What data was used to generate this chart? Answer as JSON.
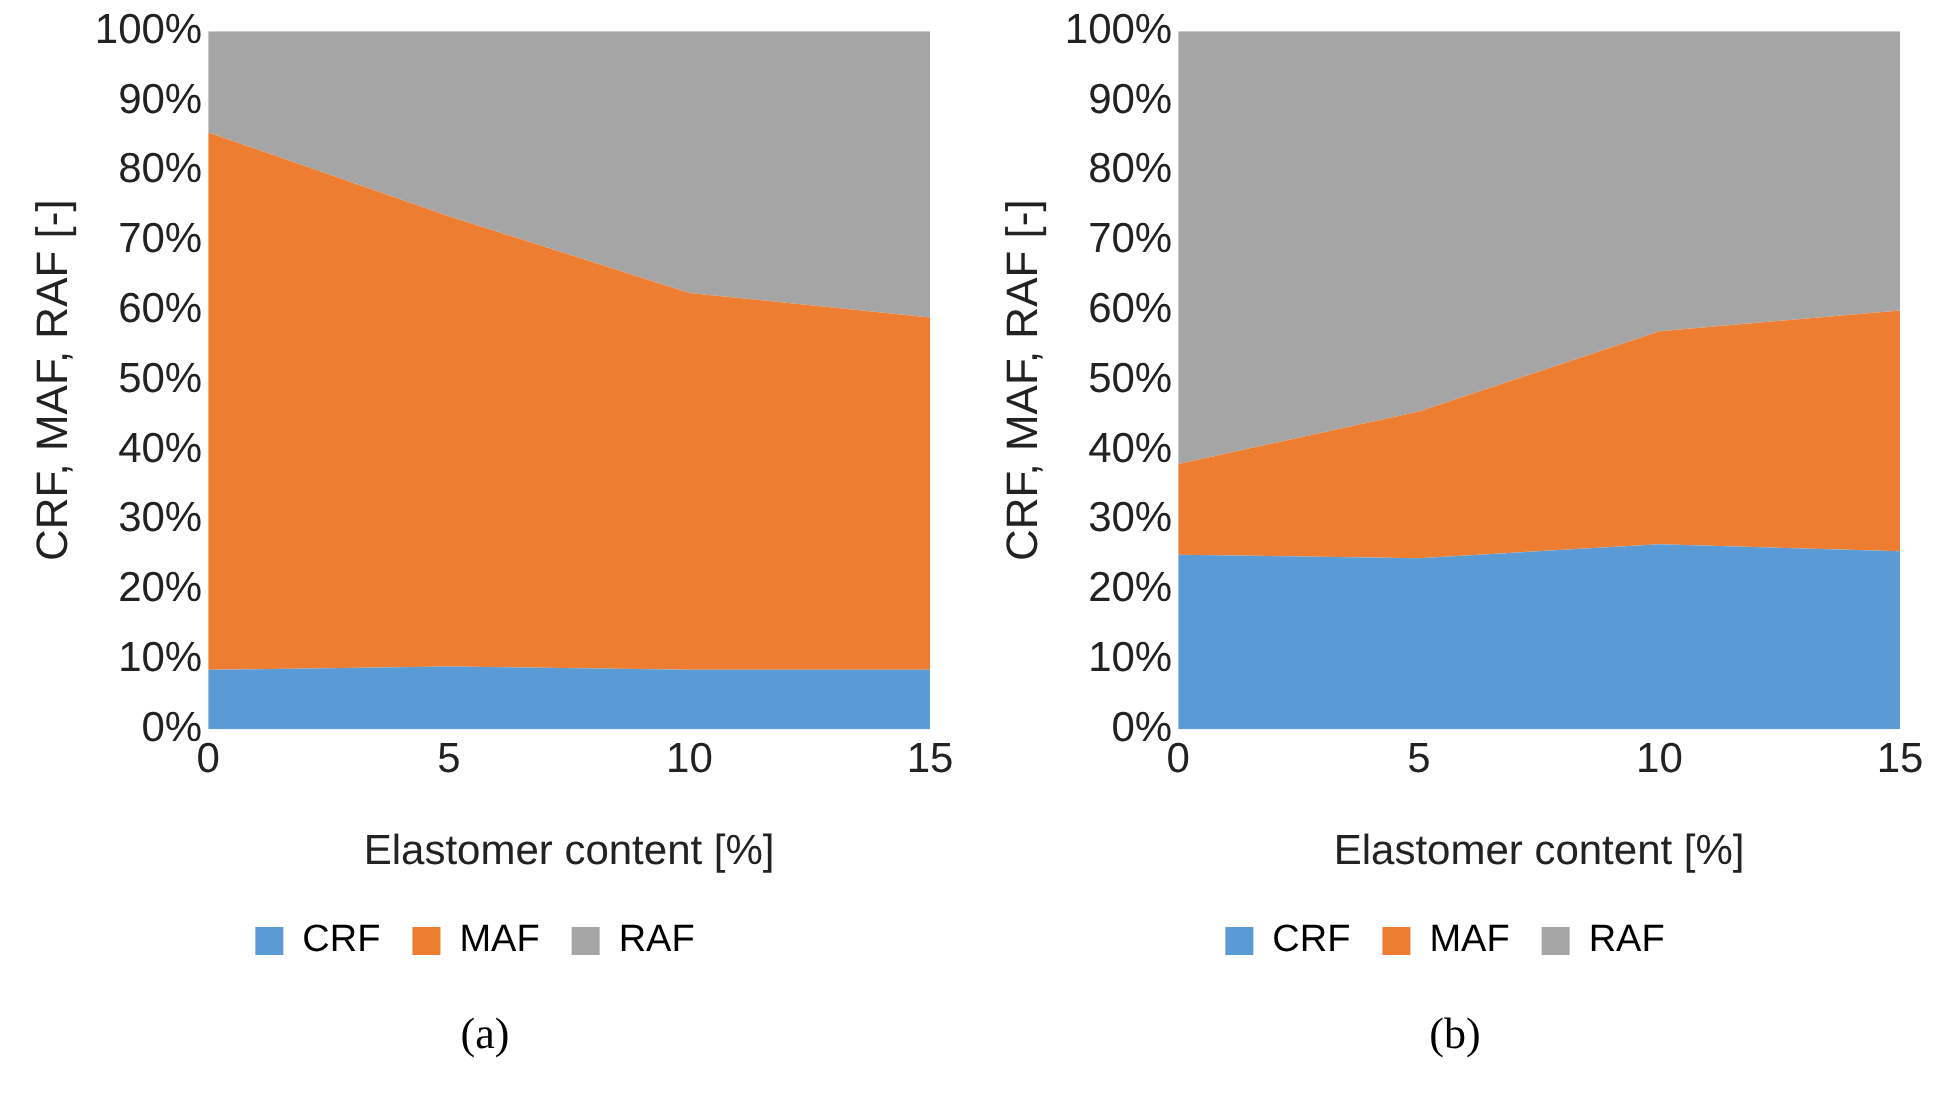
{
  "chart_data": [
    {
      "type": "area",
      "stacked": true,
      "xlabel": "Elastomer content [%]",
      "ylabel": "CRF, MAF, RAF [-]",
      "x": [
        0,
        5,
        10,
        15
      ],
      "xlim": [
        0,
        15
      ],
      "xticks": [
        0,
        5,
        10,
        15
      ],
      "ylim": [
        0,
        100
      ],
      "yticks": [
        {
          "value": 0,
          "label": "0%"
        },
        {
          "value": 10,
          "label": "10%"
        },
        {
          "value": 20,
          "label": "20%"
        },
        {
          "value": 30,
          "label": "30%"
        },
        {
          "value": 40,
          "label": "40%"
        },
        {
          "value": 50,
          "label": "50%"
        },
        {
          "value": 60,
          "label": "60%"
        },
        {
          "value": 70,
          "label": "70%"
        },
        {
          "value": 80,
          "label": "80%"
        },
        {
          "value": 90,
          "label": "90%"
        },
        {
          "value": 100,
          "label": "100%"
        }
      ],
      "series": [
        {
          "name": "CRF",
          "color": "#5b9bd5",
          "values": [
            8.5,
            9,
            8.5,
            8.5
          ]
        },
        {
          "name": "MAF",
          "color": "#ed7d31",
          "values": [
            77,
            64.5,
            54,
            50.5
          ]
        },
        {
          "name": "RAF",
          "color": "#a5a5a5",
          "values": [
            14.5,
            26.5,
            37.5,
            41
          ]
        }
      ],
      "grid": false,
      "legend": "bottom",
      "annotations": [
        "(a)"
      ]
    },
    {
      "type": "area",
      "stacked": true,
      "xlabel": "Elastomer content [%]",
      "ylabel": "CRF, MAF, RAF [-]",
      "x": [
        0,
        5,
        10,
        15
      ],
      "xlim": [
        0,
        15
      ],
      "xticks": [
        0,
        5,
        10,
        15
      ],
      "ylim": [
        0,
        100
      ],
      "yticks": [
        {
          "value": 0,
          "label": "0%"
        },
        {
          "value": 10,
          "label": "10%"
        },
        {
          "value": 20,
          "label": "20%"
        },
        {
          "value": 30,
          "label": "30%"
        },
        {
          "value": 40,
          "label": "40%"
        },
        {
          "value": 50,
          "label": "50%"
        },
        {
          "value": 60,
          "label": "60%"
        },
        {
          "value": 70,
          "label": "70%"
        },
        {
          "value": 80,
          "label": "80%"
        },
        {
          "value": 90,
          "label": "90%"
        },
        {
          "value": 100,
          "label": "100%"
        }
      ],
      "series": [
        {
          "name": "CRF",
          "color": "#5b9bd5",
          "values": [
            25,
            24.5,
            26.5,
            25.5
          ]
        },
        {
          "name": "MAF",
          "color": "#ed7d31",
          "values": [
            13,
            21,
            30.5,
            34.5
          ]
        },
        {
          "name": "RAF",
          "color": "#a5a5a5",
          "values": [
            62,
            54.5,
            43,
            40
          ]
        }
      ],
      "grid": false,
      "legend": "bottom",
      "annotations": [
        "(b)"
      ]
    }
  ]
}
